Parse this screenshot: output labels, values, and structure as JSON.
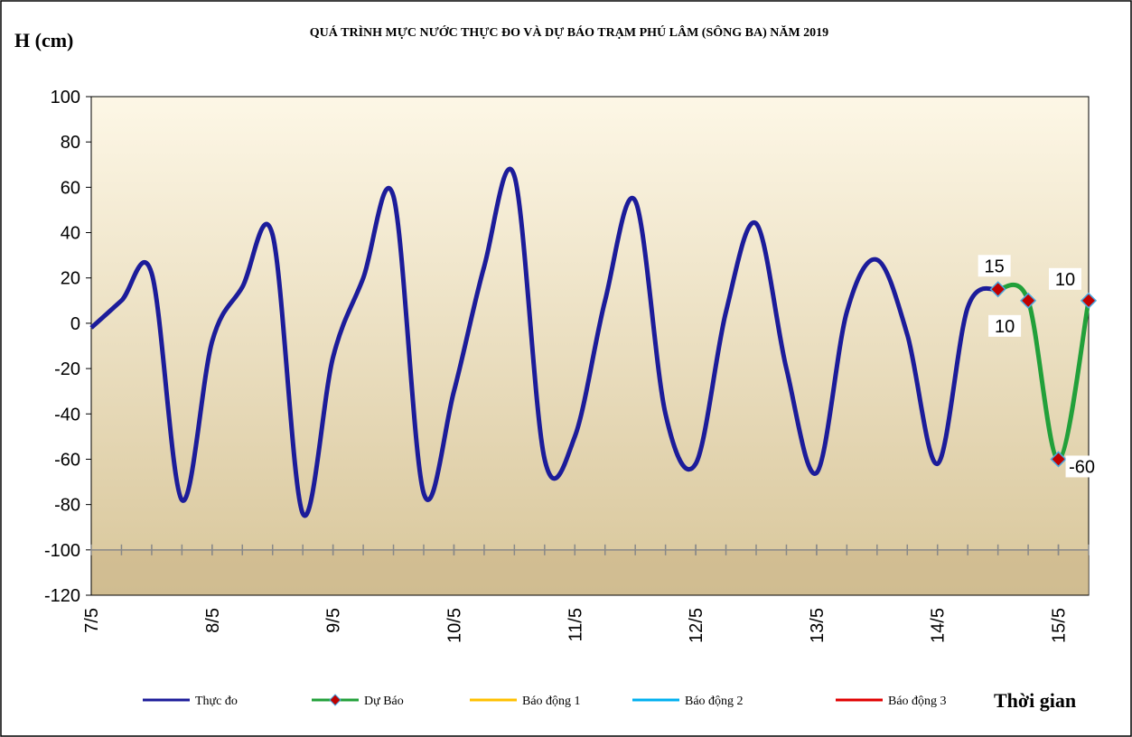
{
  "chart_data": {
    "type": "line",
    "title": "QUÁ TRÌNH MỰC NƯỚC THỰC ĐO VÀ DỰ BÁO TRẠM PHÚ LÂM (SÔNG BA) NĂM 2019",
    "y_label": "H (cm)",
    "x_label": "Thời gian",
    "xlim": [
      0,
      198
    ],
    "xticks": [
      {
        "value": 0,
        "label": "7/5"
      },
      {
        "value": 24,
        "label": "8/5"
      },
      {
        "value": 48,
        "label": "9/5"
      },
      {
        "value": 72,
        "label": "10/5"
      },
      {
        "value": 96,
        "label": "11/5"
      },
      {
        "value": 120,
        "label": "12/5"
      },
      {
        "value": 144,
        "label": "13/5"
      },
      {
        "value": 168,
        "label": "14/5"
      },
      {
        "value": 192,
        "label": "15/5"
      }
    ],
    "ylim": [
      -120,
      100
    ],
    "yticks": [
      -120,
      -100,
      -80,
      -60,
      -40,
      -20,
      0,
      20,
      40,
      60,
      80,
      100
    ],
    "x_axis_crosses_at": -100,
    "series": [
      {
        "name": "Thực đo",
        "color": "#1c1c9a",
        "x": [
          0,
          6,
          12,
          18,
          24,
          30,
          36,
          42,
          48,
          54,
          60,
          66,
          72,
          78,
          84,
          90,
          96,
          102,
          108,
          114,
          120,
          126,
          132,
          138,
          144,
          150,
          156,
          162,
          168,
          174,
          180
        ],
        "values": [
          -2,
          10,
          22,
          -78,
          -8,
          16,
          39,
          -84,
          -15,
          20,
          56,
          -75,
          -30,
          25,
          65,
          -60,
          -50,
          10,
          54,
          -40,
          -62,
          5,
          44,
          -20,
          -66,
          5,
          28,
          -5,
          -62,
          7,
          15
        ]
      },
      {
        "name": "Dự Báo",
        "color": "#22a03a",
        "marker_color": "#c00000",
        "x": [
          180,
          186,
          192,
          198
        ],
        "values": [
          15,
          10,
          -60,
          10
        ]
      },
      {
        "name": "Báo động 1",
        "color": "#ffc000",
        "x": [],
        "values": []
      },
      {
        "name": "Báo động 2",
        "color": "#00b0f0",
        "x": [],
        "values": []
      },
      {
        "name": "Báo động 3",
        "color": "#e00000",
        "x": [],
        "values": []
      }
    ]
  }
}
